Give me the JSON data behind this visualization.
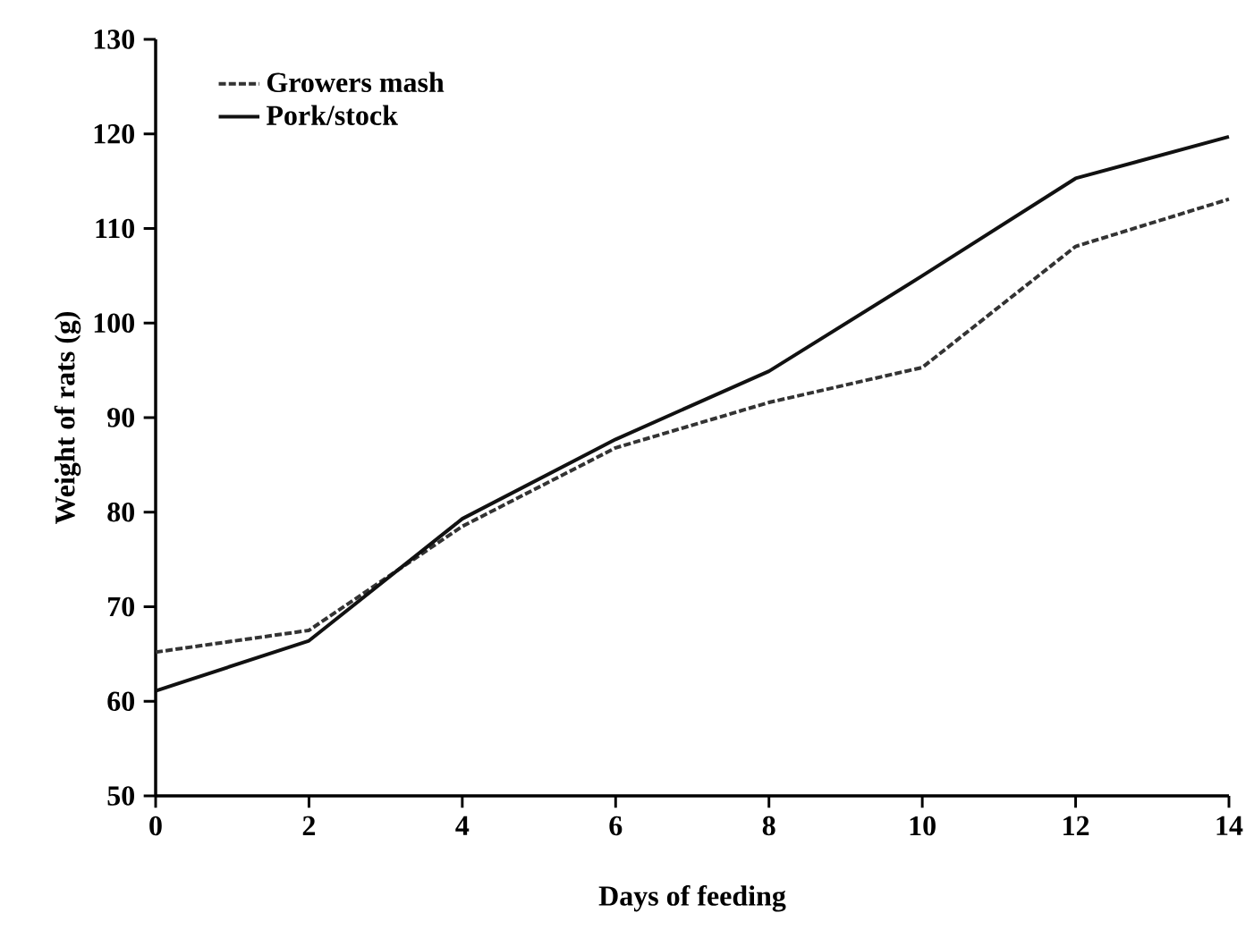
{
  "chart_data": {
    "type": "line",
    "xlabel": "Days of feeding",
    "ylabel": "Weight of rats (g)",
    "x": [
      0,
      2,
      4,
      6,
      8,
      10,
      12,
      14
    ],
    "series": [
      {
        "name": "Growers mash",
        "color": "#333333",
        "line_style": "dashed",
        "values": [
          65.2,
          67.5,
          78.5,
          86.8,
          91.6,
          95.3,
          108.1,
          113.1
        ]
      },
      {
        "name": "Pork/stock",
        "color": "#111111",
        "line_style": "solid",
        "values": [
          61.1,
          66.4,
          79.3,
          87.7,
          94.9,
          105.0,
          115.3,
          119.7
        ]
      }
    ],
    "xlim": [
      0,
      14
    ],
    "xticks": [
      0,
      2,
      4,
      6,
      8,
      10,
      12,
      14
    ],
    "ylim": [
      50,
      130
    ],
    "yticks": [
      50,
      60,
      70,
      80,
      90,
      100,
      110,
      120,
      130
    ],
    "legend": "top left",
    "grid": false,
    "marker": "none"
  }
}
